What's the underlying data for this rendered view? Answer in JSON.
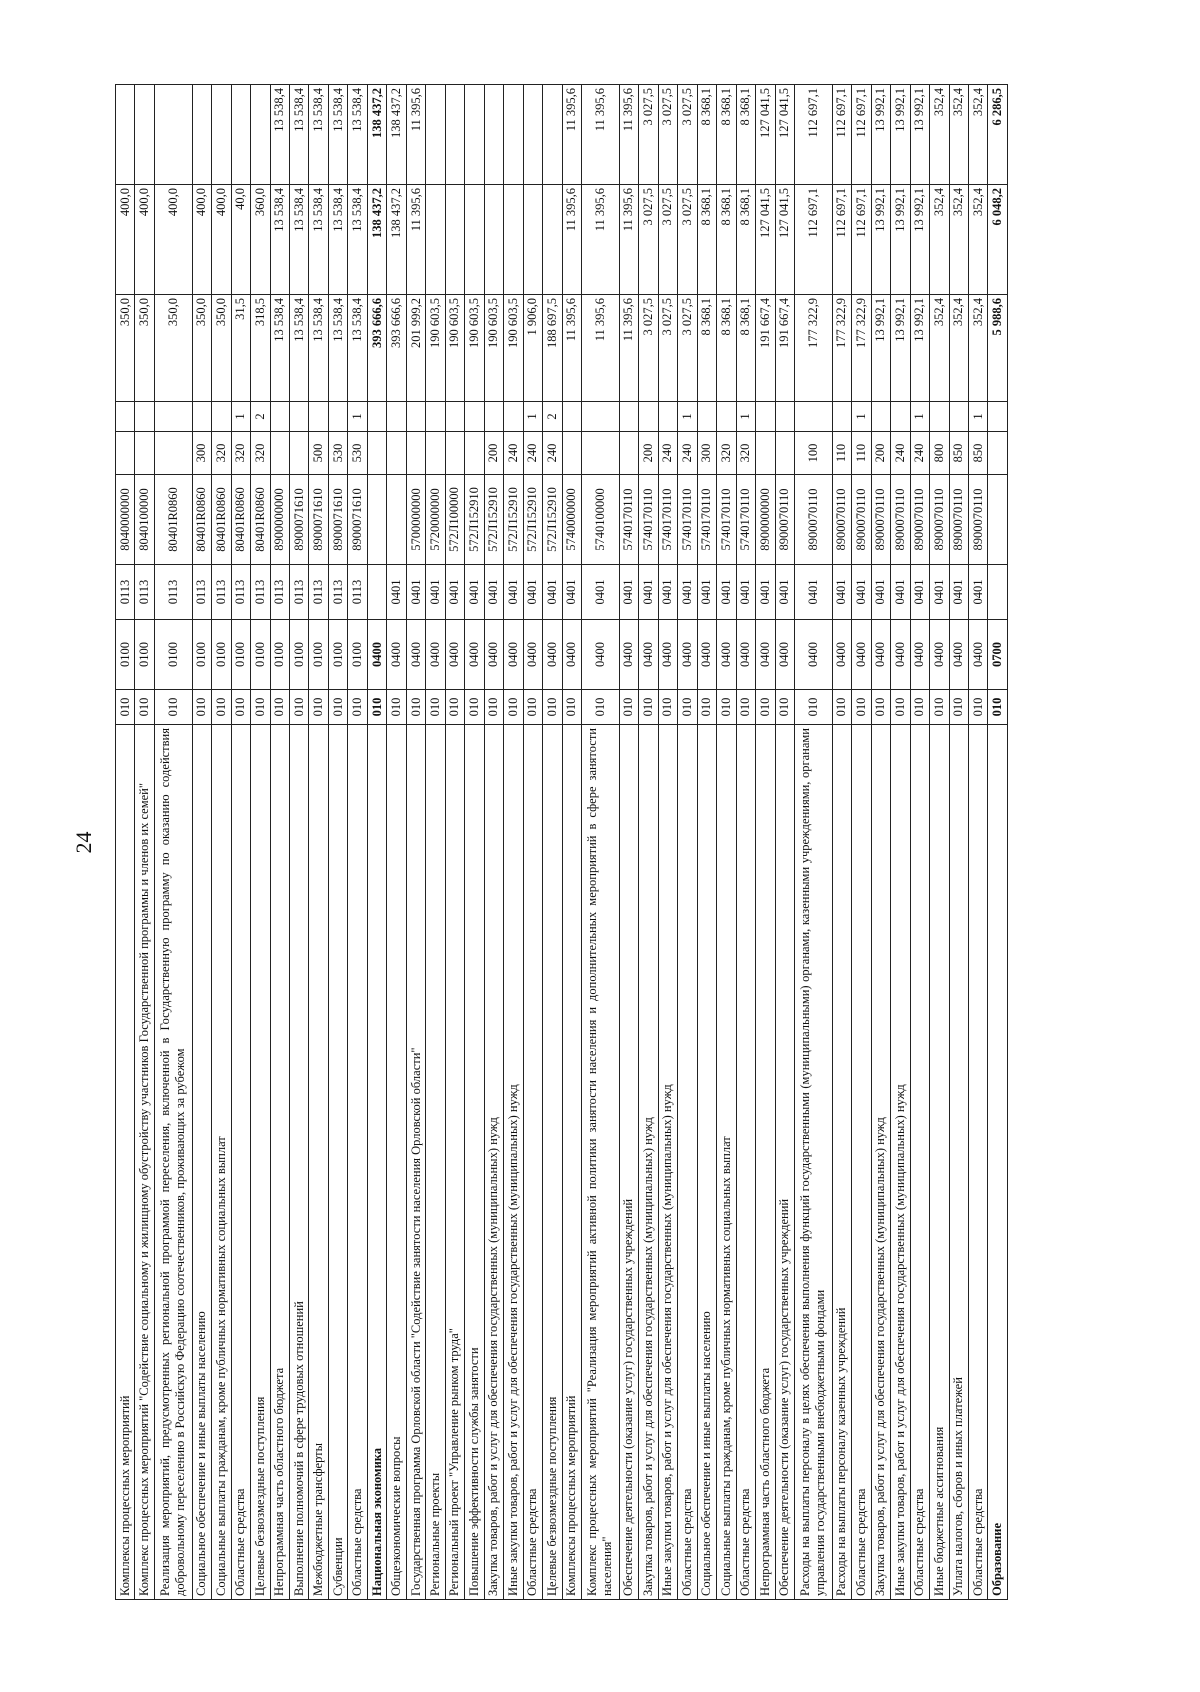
{
  "page_number": "24",
  "rows": [
    [
      "Комплексы процессных мероприятий",
      "010",
      "0100",
      "0113",
      "8040000000",
      "",
      "",
      "350,0",
      "400,0",
      "",
      false
    ],
    [
      "Комплекс процессных мероприятий \"Содействие социальному и жилищному обустройству участников Государственной программы и членов их семей\"",
      "010",
      "0100",
      "0113",
      "8040100000",
      "",
      "",
      "350,0",
      "400,0",
      "",
      false
    ],
    [
      "Реализация мероприятий, предусмотренных региональной программой переселения, включенной в Государственную программу по оказанию содействия добровольному переселению в Российскую Федерацию соотечественников, проживающих за рубежом",
      "010",
      "0100",
      "0113",
      "80401R0860",
      "",
      "",
      "350,0",
      "400,0",
      "",
      false
    ],
    [
      "Социальное обеспечение и иные выплаты населению",
      "010",
      "0100",
      "0113",
      "80401R0860",
      "300",
      "",
      "350,0",
      "400,0",
      "",
      false
    ],
    [
      "Социальные выплаты гражданам, кроме публичных нормативных социальных выплат",
      "010",
      "0100",
      "0113",
      "80401R0860",
      "320",
      "",
      "350,0",
      "400,0",
      "",
      false
    ],
    [
      "Областные средства",
      "010",
      "0100",
      "0113",
      "80401R0860",
      "320",
      "1",
      "31,5",
      "40,0",
      "",
      false
    ],
    [
      "Целевые безвозмездные поступления",
      "010",
      "0100",
      "0113",
      "80401R0860",
      "320",
      "2",
      "318,5",
      "360,0",
      "",
      false
    ],
    [
      "Непрограммная часть областного бюджета",
      "010",
      "0100",
      "0113",
      "8900000000",
      "",
      "",
      "13 538,4",
      "13 538,4",
      "13 538,4",
      false
    ],
    [
      "Выполнение полномочий в сфере трудовых отношений",
      "010",
      "0100",
      "0113",
      "8900071610",
      "",
      "",
      "13 538,4",
      "13 538,4",
      "13 538,4",
      false
    ],
    [
      "Межбюджетные трансферты",
      "010",
      "0100",
      "0113",
      "8900071610",
      "500",
      "",
      "13 538,4",
      "13 538,4",
      "13 538,4",
      false
    ],
    [
      "Субвенции",
      "010",
      "0100",
      "0113",
      "8900071610",
      "530",
      "",
      "13 538,4",
      "13 538,4",
      "13 538,4",
      false
    ],
    [
      "Областные средства",
      "010",
      "0100",
      "0113",
      "8900071610",
      "530",
      "1",
      "13 538,4",
      "13 538,4",
      "13 538,4",
      false
    ],
    [
      "Национальная экономика",
      "010",
      "0400",
      "",
      "",
      "",
      "",
      "393 666,6",
      "138 437,2",
      "138 437,2",
      true
    ],
    [
      "Общеэкономические вопросы",
      "010",
      "0400",
      "0401",
      "",
      "",
      "",
      "393 666,6",
      "138 437,2",
      "138 437,2",
      false
    ],
    [
      "Государственная программа Орловской области \"Содействие занятости населения Орловской области\"",
      "010",
      "0400",
      "0401",
      "5700000000",
      "",
      "",
      "201 999,2",
      "11 395,6",
      "11 395,6",
      false
    ],
    [
      "Региональные проекты",
      "010",
      "0400",
      "0401",
      "5720000000",
      "",
      "",
      "190 603,5",
      "",
      "",
      false
    ],
    [
      "Региональный проект \"Управление рынком труда\"",
      "010",
      "0400",
      "0401",
      "572Л100000",
      "",
      "",
      "190 603,5",
      "",
      "",
      false
    ],
    [
      "Повышение эффективности службы занятости",
      "010",
      "0400",
      "0401",
      "572Л152910",
      "",
      "",
      "190 603,5",
      "",
      "",
      false
    ],
    [
      "Закупка товаров, работ и услуг для обеспечения государственных (муниципальных) нужд",
      "010",
      "0400",
      "0401",
      "572Л152910",
      "200",
      "",
      "190 603,5",
      "",
      "",
      false
    ],
    [
      "Иные закупки товаров, работ и услуг для обеспечения государственных (муниципальных) нужд",
      "010",
      "0400",
      "0401",
      "572Л152910",
      "240",
      "",
      "190 603,5",
      "",
      "",
      false
    ],
    [
      "Областные средства",
      "010",
      "0400",
      "0401",
      "572Л152910",
      "240",
      "1",
      "1 906,0",
      "",
      "",
      false
    ],
    [
      "Целевые безвозмездные поступления",
      "010",
      "0400",
      "0401",
      "572Л152910",
      "240",
      "2",
      "188 697,5",
      "",
      "",
      false
    ],
    [
      "Комплексы процессных мероприятий",
      "010",
      "0400",
      "0401",
      "5740000000",
      "",
      "",
      "11 395,6",
      "11 395,6",
      "11 395,6",
      false
    ],
    [
      "Комплекс процессных мероприятий \"Реализация мероприятий активной политики занятости населения и дополнительных мероприятий в сфере занятости населения\"",
      "010",
      "0400",
      "0401",
      "5740100000",
      "",
      "",
      "11 395,6",
      "11 395,6",
      "11 395,6",
      false
    ],
    [
      "Обеспечение деятельности (оказание услуг) государственных учреждений",
      "010",
      "0400",
      "0401",
      "5740170110",
      "",
      "",
      "11 395,6",
      "11 395,6",
      "11 395,6",
      false
    ],
    [
      "Закупка товаров, работ и услуг для обеспечения государственных (муниципальных) нужд",
      "010",
      "0400",
      "0401",
      "5740170110",
      "200",
      "",
      "3 027,5",
      "3 027,5",
      "3 027,5",
      false
    ],
    [
      "Иные закупки товаров, работ и услуг для обеспечения государственных (муниципальных) нужд",
      "010",
      "0400",
      "0401",
      "5740170110",
      "240",
      "",
      "3 027,5",
      "3 027,5",
      "3 027,5",
      false
    ],
    [
      "Областные средства",
      "010",
      "0400",
      "0401",
      "5740170110",
      "240",
      "1",
      "3 027,5",
      "3 027,5",
      "3 027,5",
      false
    ],
    [
      "Социальное обеспечение и иные выплаты населению",
      "010",
      "0400",
      "0401",
      "5740170110",
      "300",
      "",
      "8 368,1",
      "8 368,1",
      "8 368,1",
      false
    ],
    [
      "Социальные выплаты гражданам, кроме публичных нормативных социальных выплат",
      "010",
      "0400",
      "0401",
      "5740170110",
      "320",
      "",
      "8 368,1",
      "8 368,1",
      "8 368,1",
      false
    ],
    [
      "Областные средства",
      "010",
      "0400",
      "0401",
      "5740170110",
      "320",
      "1",
      "8 368,1",
      "8 368,1",
      "8 368,1",
      false
    ],
    [
      "Непрограммная часть областного бюджета",
      "010",
      "0400",
      "0401",
      "8900000000",
      "",
      "",
      "191 667,4",
      "127 041,5",
      "127 041,5",
      false
    ],
    [
      "Обеспечение деятельности (оказание услуг) государственных учреждений",
      "010",
      "0400",
      "0401",
      "8900070110",
      "",
      "",
      "191 667,4",
      "127 041,5",
      "127 041,5",
      false
    ],
    [
      "Расходы на выплаты персоналу в целях обеспечения выполнения функций государственными (муниципальными) органами, казенными учреждениями, органами управления государственными внебюджетными фондами",
      "010",
      "0400",
      "0401",
      "8900070110",
      "100",
      "",
      "177 322,9",
      "112 697,1",
      "112 697,1",
      false
    ],
    [
      "Расходы на выплаты персоналу казенных учреждений",
      "010",
      "0400",
      "0401",
      "8900070110",
      "110",
      "",
      "177 322,9",
      "112 697,1",
      "112 697,1",
      false
    ],
    [
      "Областные средства",
      "010",
      "0400",
      "0401",
      "8900070110",
      "110",
      "1",
      "177 322,9",
      "112 697,1",
      "112 697,1",
      false
    ],
    [
      "Закупка товаров, работ и услуг для обеспечения государственных (муниципальных) нужд",
      "010",
      "0400",
      "0401",
      "8900070110",
      "200",
      "",
      "13 992,1",
      "13 992,1",
      "13 992,1",
      false
    ],
    [
      "Иные закупки товаров, работ и услуг для обеспечения государственных (муниципальных) нужд",
      "010",
      "0400",
      "0401",
      "8900070110",
      "240",
      "",
      "13 992,1",
      "13 992,1",
      "13 992,1",
      false
    ],
    [
      "Областные средства",
      "010",
      "0400",
      "0401",
      "8900070110",
      "240",
      "1",
      "13 992,1",
      "13 992,1",
      "13 992,1",
      false
    ],
    [
      "Иные бюджетные ассигнования",
      "010",
      "0400",
      "0401",
      "8900070110",
      "800",
      "",
      "352,4",
      "352,4",
      "352,4",
      false
    ],
    [
      "Уплата налогов, сборов и иных платежей",
      "010",
      "0400",
      "0401",
      "8900070110",
      "850",
      "",
      "352,4",
      "352,4",
      "352,4",
      false
    ],
    [
      "Областные средства",
      "010",
      "0400",
      "0401",
      "8900070110",
      "850",
      "1",
      "352,4",
      "352,4",
      "352,4",
      false
    ],
    [
      "Образование",
      "010",
      "0700",
      "",
      "",
      "",
      "",
      "5 988,6",
      "6 048,2",
      "6 286,5",
      true
    ]
  ]
}
